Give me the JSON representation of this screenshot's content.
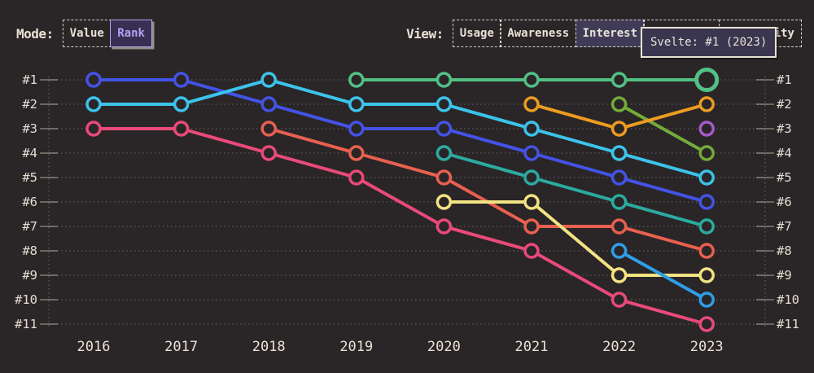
{
  "topbar": {
    "mode": {
      "label": "Mode:",
      "options": [
        "Value",
        "Rank"
      ],
      "active": "Rank"
    },
    "view": {
      "label": "View:",
      "options": [
        "Usage",
        "Awareness",
        "Interest",
        "Retention",
        "Positivity"
      ],
      "active": "Interest"
    }
  },
  "tooltip": {
    "text": "Svelte: #1 (2023)"
  },
  "colors": {
    "background": "#2a2527",
    "text_cream": "#e9e3d6",
    "accent_purple": "#b3a1f2",
    "active_button_bg": "#403c58",
    "tooltip_bg": "#3a3650",
    "grid": "rgba(233,227,214,0.28)"
  },
  "chart_data": {
    "type": "line",
    "subtype": "bump-rank-chart",
    "title": "",
    "x": [
      2016,
      2017,
      2018,
      2019,
      2020,
      2021,
      2022,
      2023
    ],
    "y_axis": "rank",
    "ylim": [
      1,
      11
    ],
    "ylabels": [
      "#1",
      "#2",
      "#3",
      "#4",
      "#5",
      "#6",
      "#7",
      "#8",
      "#9",
      "#10",
      "#11"
    ],
    "grid": true,
    "legend_position": "none",
    "highlight": {
      "series": "Svelte",
      "year": 2023,
      "rank": 1
    },
    "series": [
      {
        "id": "indigo",
        "color": "#4353e6",
        "ranks": [
          1,
          1,
          2,
          3,
          3,
          4,
          5,
          6
        ]
      },
      {
        "id": "cyan",
        "color": "#3cc3ea",
        "ranks": [
          2,
          2,
          1,
          2,
          2,
          3,
          4,
          5
        ]
      },
      {
        "id": "pink",
        "color": "#e94a7a",
        "ranks": [
          3,
          3,
          4,
          5,
          7,
          8,
          10,
          11
        ]
      },
      {
        "id": "tomato",
        "color": "#e8604f",
        "ranks": [
          null,
          null,
          3,
          4,
          5,
          7,
          7,
          8
        ]
      },
      {
        "id": "teal",
        "color": "#2caaa0",
        "ranks": [
          null,
          null,
          null,
          null,
          4,
          5,
          6,
          7
        ]
      },
      {
        "id": "yellow",
        "color": "#f2e382",
        "ranks": [
          null,
          null,
          null,
          null,
          6,
          6,
          9,
          9
        ]
      },
      {
        "id": "olive",
        "color": "#73ab39",
        "ranks": [
          null,
          null,
          null,
          null,
          null,
          null,
          2,
          4
        ]
      },
      {
        "id": "sky",
        "color": "#2f9ee6",
        "ranks": [
          null,
          null,
          null,
          null,
          null,
          null,
          8,
          10
        ]
      },
      {
        "id": "amber",
        "color": "#eb9c21",
        "ranks": [
          null,
          null,
          null,
          null,
          null,
          2,
          3,
          2
        ]
      },
      {
        "id": "Svelte",
        "color": "#52c084",
        "ranks": [
          null,
          null,
          null,
          1,
          1,
          1,
          1,
          1
        ],
        "highlight_last": true
      },
      {
        "id": "purple",
        "color": "#a55bc6",
        "ranks": [
          null,
          null,
          null,
          null,
          null,
          null,
          null,
          3
        ]
      }
    ]
  }
}
